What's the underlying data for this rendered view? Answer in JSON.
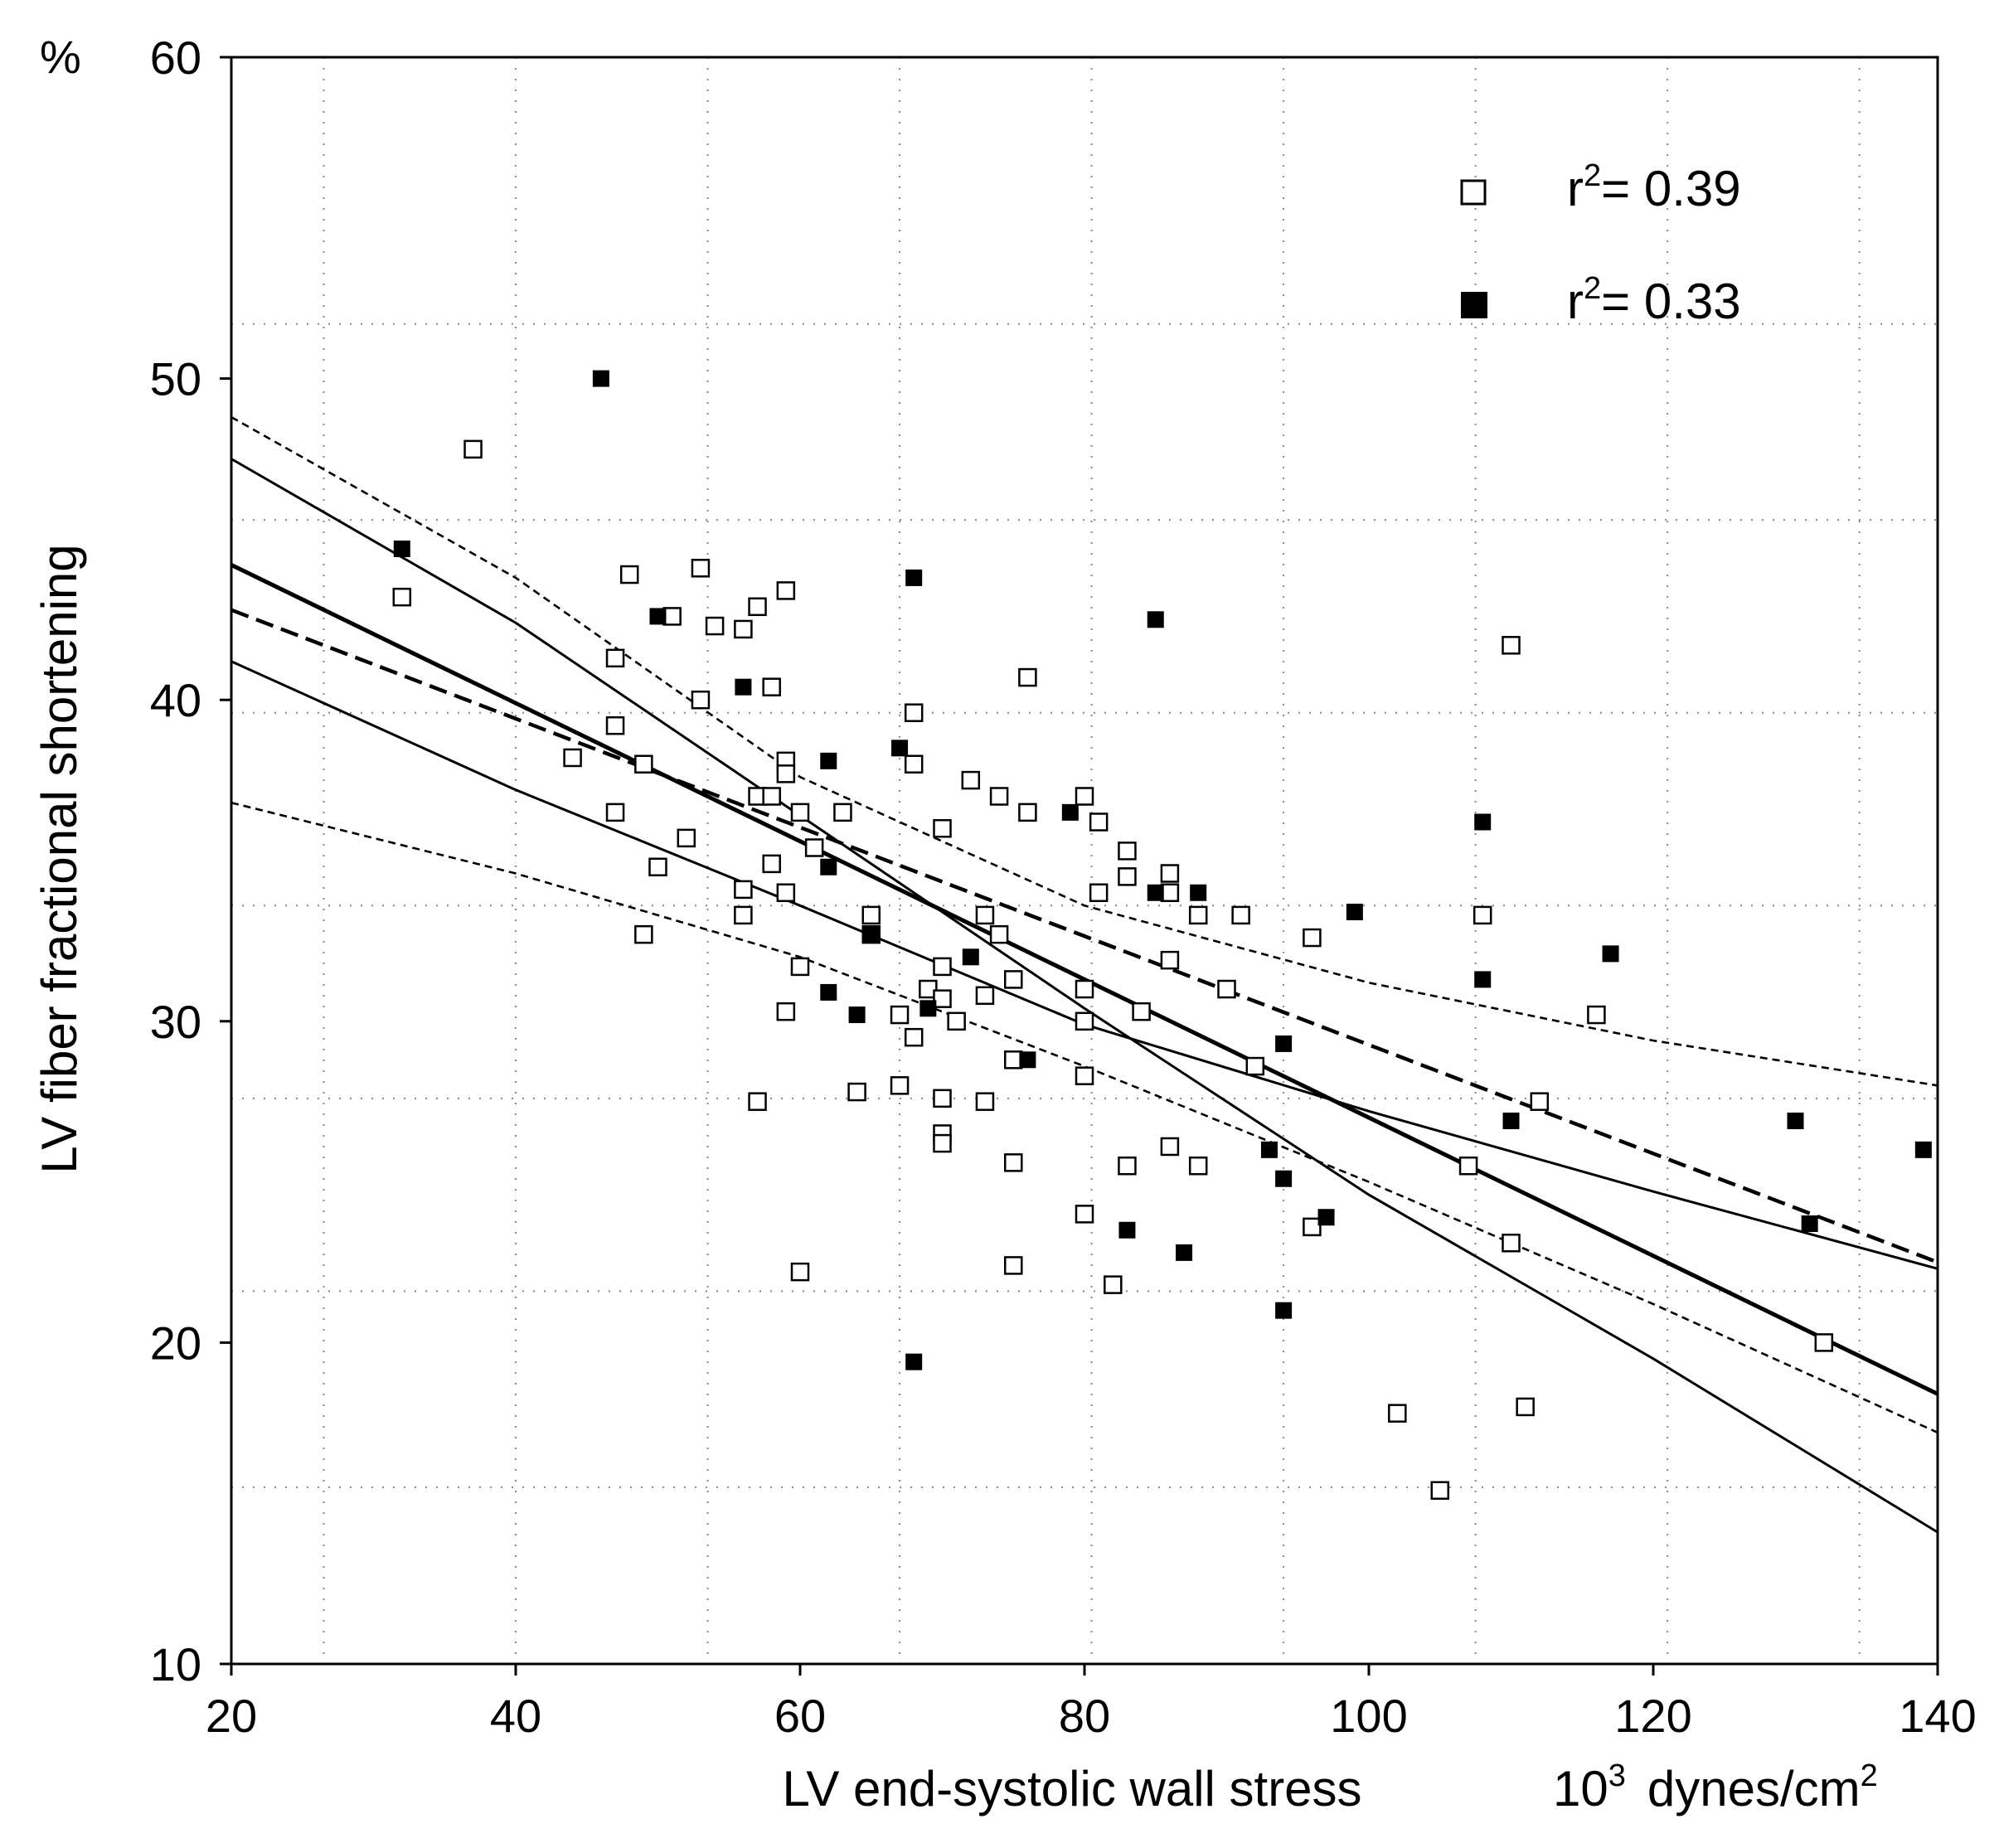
{
  "chart_data": {
    "type": "scatter",
    "xlabel": "LV end-systolic wall stress",
    "xunit_base": "10",
    "xunit_exp": "3",
    "xunit_text": "dynes/cm",
    "xunit_text_exp": "2",
    "ylabel": "LV fiber fractional shortening",
    "yunit": "%",
    "xlim": [
      20,
      140
    ],
    "ylim": [
      10,
      60
    ],
    "xticks": [
      "20",
      "40",
      "60",
      "80",
      "100",
      "120",
      "140"
    ],
    "yticks": [
      "10",
      "20",
      "30",
      "40",
      "50",
      "60"
    ],
    "xtick_values": [
      20,
      40,
      60,
      80,
      100,
      120,
      140
    ],
    "ytick_values": [
      10,
      20,
      30,
      40,
      50,
      60
    ],
    "grid": "dotted",
    "grid_x": [
      26.5,
      40,
      53.5,
      67,
      80.5,
      94,
      107.5,
      121,
      134.5
    ],
    "grid_y": [
      15.5,
      21.6,
      27.6,
      33.6,
      39.6,
      45.6,
      51.7
    ],
    "legend_position": "top-right",
    "series": [
      {
        "marker": "open-square",
        "legend": {
          "prefix": "r",
          "sup": "2",
          "suffix": "= 0.39"
        },
        "points": [
          [
            37,
            47.8
          ],
          [
            32,
            43.2
          ],
          [
            44,
            38.2
          ],
          [
            47,
            41.3
          ],
          [
            47,
            39.2
          ],
          [
            47,
            36.5
          ],
          [
            48,
            43.9
          ],
          [
            49,
            38.0
          ],
          [
            49,
            32.7
          ],
          [
            50,
            34.8
          ],
          [
            51,
            42.6
          ],
          [
            52,
            35.7
          ],
          [
            53,
            44.1
          ],
          [
            53,
            40.0
          ],
          [
            54,
            42.3
          ],
          [
            56,
            42.2
          ],
          [
            56,
            34.1
          ],
          [
            56,
            33.3
          ],
          [
            57,
            42.9
          ],
          [
            57,
            37.0
          ],
          [
            57,
            27.5
          ],
          [
            58,
            40.4
          ],
          [
            58,
            37.0
          ],
          [
            58,
            34.9
          ],
          [
            59,
            43.4
          ],
          [
            59,
            38.1
          ],
          [
            59,
            37.7
          ],
          [
            59,
            34.0
          ],
          [
            59,
            30.3
          ],
          [
            60,
            36.5
          ],
          [
            60,
            31.7
          ],
          [
            60,
            22.2
          ],
          [
            61,
            35.4
          ],
          [
            63,
            36.5
          ],
          [
            65,
            33.3
          ],
          [
            65,
            32.7
          ],
          [
            64,
            27.8
          ],
          [
            67,
            30.2
          ],
          [
            67,
            28.0
          ],
          [
            68,
            39.6
          ],
          [
            68,
            38.0
          ],
          [
            68,
            29.5
          ],
          [
            69,
            31.0
          ],
          [
            70,
            36.0
          ],
          [
            70,
            31.7
          ],
          [
            70,
            30.7
          ],
          [
            70,
            27.6
          ],
          [
            70,
            26.5
          ],
          [
            70,
            26.2
          ],
          [
            71,
            30.0
          ],
          [
            72,
            37.5
          ],
          [
            73,
            33.3
          ],
          [
            73,
            30.8
          ],
          [
            73,
            27.5
          ],
          [
            74,
            37.0
          ],
          [
            74,
            32.7
          ],
          [
            75,
            31.3
          ],
          [
            75,
            28.8
          ],
          [
            75,
            25.6
          ],
          [
            75,
            22.4
          ],
          [
            76,
            40.7
          ],
          [
            76,
            36.5
          ],
          [
            80,
            37.0
          ],
          [
            80,
            31.0
          ],
          [
            80,
            30.0
          ],
          [
            80,
            28.3
          ],
          [
            80,
            24.0
          ],
          [
            81,
            36.2
          ],
          [
            81,
            34.0
          ],
          [
            82,
            21.8
          ],
          [
            83,
            35.3
          ],
          [
            83,
            34.5
          ],
          [
            83,
            25.5
          ],
          [
            84,
            30.3
          ],
          [
            86,
            34.6
          ],
          [
            86,
            34.0
          ],
          [
            86,
            31.9
          ],
          [
            86,
            26.1
          ],
          [
            88,
            33.3
          ],
          [
            88,
            25.5
          ],
          [
            90,
            31.0
          ],
          [
            91,
            33.3
          ],
          [
            92,
            28.6
          ],
          [
            96,
            32.6
          ],
          [
            96,
            23.6
          ],
          [
            102,
            17.8
          ],
          [
            105,
            15.4
          ],
          [
            107,
            25.5
          ],
          [
            108,
            33.3
          ],
          [
            110,
            41.7
          ],
          [
            110,
            23.1
          ],
          [
            111,
            18.0
          ],
          [
            112,
            27.5
          ],
          [
            116,
            30.2
          ],
          [
            132,
            20.0
          ]
        ]
      },
      {
        "marker": "filled-square",
        "legend": {
          "prefix": "r",
          "sup": "2",
          "suffix": "= 0.33"
        },
        "points": [
          [
            46,
            50.0
          ],
          [
            32,
            44.7
          ],
          [
            50,
            42.6
          ],
          [
            56,
            40.4
          ],
          [
            62,
            38.1
          ],
          [
            62,
            34.8
          ],
          [
            62,
            30.9
          ],
          [
            64,
            30.2
          ],
          [
            65,
            32.7
          ],
          [
            67,
            38.5
          ],
          [
            68,
            43.8
          ],
          [
            68,
            19.4
          ],
          [
            69,
            30.4
          ],
          [
            72,
            32.0
          ],
          [
            76,
            28.8
          ],
          [
            79,
            36.5
          ],
          [
            85,
            42.5
          ],
          [
            85,
            34.0
          ],
          [
            87,
            22.8
          ],
          [
            88,
            34.0
          ],
          [
            83,
            23.5
          ],
          [
            93,
            26.0
          ],
          [
            94,
            29.3
          ],
          [
            94,
            25.1
          ],
          [
            94,
            21.0
          ],
          [
            97,
            23.9
          ],
          [
            99,
            33.4
          ],
          [
            108,
            36.2
          ],
          [
            108,
            31.3
          ],
          [
            110,
            26.9
          ],
          [
            117,
            32.1
          ],
          [
            130,
            26.9
          ],
          [
            131,
            23.7
          ],
          [
            139,
            26.0
          ]
        ]
      }
    ],
    "lines": [
      {
        "style": "solid",
        "width": 5,
        "points": [
          [
            20,
            44.2
          ],
          [
            140,
            18.4
          ]
        ]
      },
      {
        "style": "solid",
        "width": 3,
        "points": [
          [
            20,
            47.5
          ],
          [
            40,
            42.4
          ],
          [
            60,
            36.4
          ],
          [
            80,
            30.4
          ],
          [
            100,
            24.6
          ],
          [
            120,
            19.5
          ],
          [
            140,
            14.1
          ]
        ]
      },
      {
        "style": "solid",
        "width": 3,
        "points": [
          [
            20,
            41.2
          ],
          [
            40,
            37.2
          ],
          [
            60,
            33.6
          ],
          [
            80,
            29.9
          ],
          [
            100,
            27.2
          ],
          [
            120,
            24.7
          ],
          [
            140,
            22.3
          ]
        ]
      },
      {
        "style": "dashed",
        "width": 4.5,
        "points": [
          [
            20,
            42.8
          ],
          [
            140,
            22.5
          ]
        ]
      },
      {
        "style": "dotted-dash",
        "width": 2.6,
        "points": [
          [
            20,
            48.8
          ],
          [
            40,
            43.8
          ],
          [
            60,
            37.6
          ],
          [
            80,
            33.6
          ],
          [
            100,
            31.2
          ],
          [
            120,
            29.4
          ],
          [
            140,
            28.0
          ]
        ]
      },
      {
        "style": "dotted-dash",
        "width": 2.6,
        "points": [
          [
            20,
            36.8
          ],
          [
            40,
            34.6
          ],
          [
            60,
            32.0
          ],
          [
            80,
            28.6
          ],
          [
            100,
            25.0
          ],
          [
            120,
            21.2
          ],
          [
            140,
            17.2
          ]
        ]
      }
    ]
  }
}
